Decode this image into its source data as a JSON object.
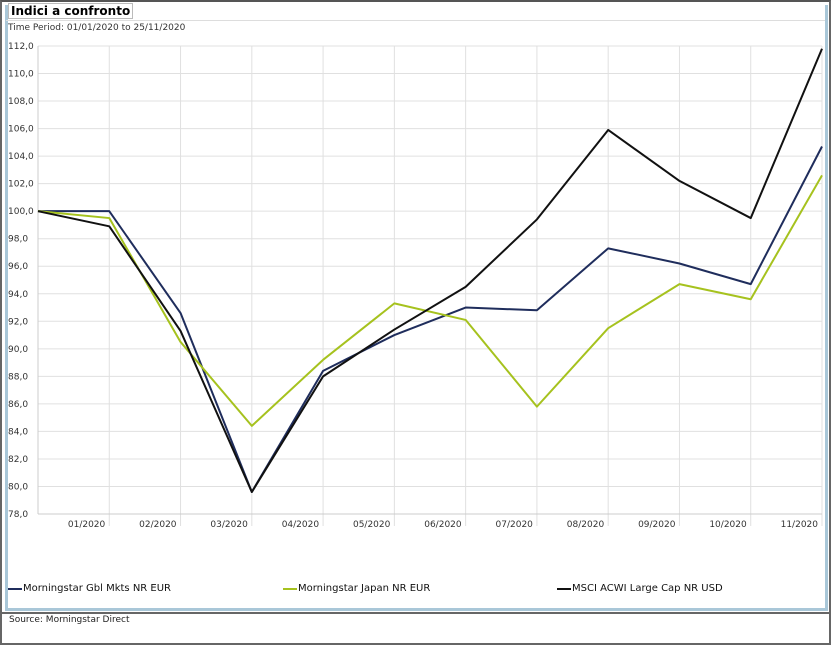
{
  "title": "Indici a confronto",
  "time_period": "Time Period: 01/01/2020 to 25/11/2020",
  "source": "Source: Morningstar Direct",
  "chart_data": {
    "type": "line",
    "title": "Indici a confronto",
    "x": [
      "",
      "01/2020",
      "02/2020",
      "03/2020",
      "04/2020",
      "05/2020",
      "06/2020",
      "07/2020",
      "08/2020",
      "09/2020",
      "10/2020",
      "11/2020"
    ],
    "ylim": [
      78,
      112
    ],
    "yticks": [
      "78,0",
      "80,0",
      "82,0",
      "84,0",
      "86,0",
      "88,0",
      "90,0",
      "92,0",
      "94,0",
      "96,0",
      "98,0",
      "100,0",
      "102,0",
      "104,0",
      "106,0",
      "108,0",
      "110,0",
      "112,0"
    ],
    "grid": true,
    "legend_position": "bottom",
    "series": [
      {
        "name": "Morningstar Gbl Mkts NR EUR",
        "color": "#1f2d5c",
        "values": [
          100,
          100,
          92.6,
          79.6,
          88.4,
          91.0,
          93.0,
          92.8,
          97.3,
          96.2,
          94.7,
          104.7
        ]
      },
      {
        "name": "Morningstar Japan NR EUR",
        "color": "#a6c21e",
        "values": [
          100,
          99.5,
          90.5,
          84.4,
          89.2,
          93.3,
          92.1,
          85.8,
          91.5,
          94.7,
          93.6,
          102.6
        ]
      },
      {
        "name": "MSCI ACWI Large Cap NR USD",
        "color": "#111111",
        "values": [
          100,
          98.9,
          91.3,
          79.6,
          88.0,
          91.4,
          94.5,
          99.4,
          105.9,
          102.2,
          99.5,
          111.8
        ]
      }
    ]
  }
}
